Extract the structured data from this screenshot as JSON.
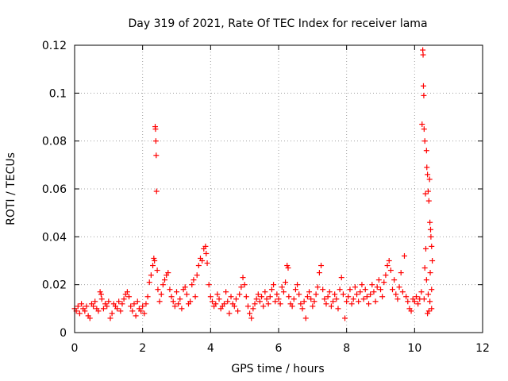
{
  "chart_data": {
    "type": "scatter",
    "title": "Day 319 of 2021, Rate Of TEC Index for receiver lama",
    "xlabel": "GPS time / hours",
    "ylabel": "ROTI / TECUs",
    "xlim": [
      0,
      12
    ],
    "ylim": [
      0,
      0.12
    ],
    "xticks": [
      0,
      2,
      4,
      6,
      8,
      10,
      12
    ],
    "yticks": [
      0,
      0.02,
      0.04,
      0.06,
      0.08,
      0.1,
      0.12
    ],
    "xtick_labels": [
      "0",
      "2",
      "4",
      "6",
      "8",
      "10",
      "12"
    ],
    "ytick_labels": [
      "0",
      "0.02",
      "0.04",
      "0.06",
      "0.08",
      "0.1",
      "0.12"
    ],
    "grid": true,
    "marker": "+",
    "color": "#ff0000",
    "series": [
      {
        "name": "ROTI",
        "points": [
          [
            0.0,
            0.01
          ],
          [
            0.05,
            0.009
          ],
          [
            0.1,
            0.011
          ],
          [
            0.15,
            0.008
          ],
          [
            0.2,
            0.012
          ],
          [
            0.25,
            0.01
          ],
          [
            0.3,
            0.009
          ],
          [
            0.35,
            0.011
          ],
          [
            0.4,
            0.007
          ],
          [
            0.45,
            0.006
          ],
          [
            0.5,
            0.012
          ],
          [
            0.55,
            0.011
          ],
          [
            0.6,
            0.013
          ],
          [
            0.65,
            0.01
          ],
          [
            0.7,
            0.009
          ],
          [
            0.75,
            0.017
          ],
          [
            0.78,
            0.016
          ],
          [
            0.8,
            0.014
          ],
          [
            0.85,
            0.01
          ],
          [
            0.9,
            0.012
          ],
          [
            0.95,
            0.011
          ],
          [
            1.0,
            0.013
          ],
          [
            1.05,
            0.006
          ],
          [
            1.1,
            0.008
          ],
          [
            1.15,
            0.012
          ],
          [
            1.2,
            0.011
          ],
          [
            1.25,
            0.01
          ],
          [
            1.3,
            0.013
          ],
          [
            1.35,
            0.009
          ],
          [
            1.4,
            0.012
          ],
          [
            1.45,
            0.014
          ],
          [
            1.5,
            0.016
          ],
          [
            1.55,
            0.017
          ],
          [
            1.6,
            0.015
          ],
          [
            1.65,
            0.011
          ],
          [
            1.7,
            0.009
          ],
          [
            1.75,
            0.012
          ],
          [
            1.8,
            0.007
          ],
          [
            1.85,
            0.013
          ],
          [
            1.9,
            0.01
          ],
          [
            1.95,
            0.009
          ],
          [
            2.0,
            0.011
          ],
          [
            2.05,
            0.008
          ],
          [
            2.1,
            0.012
          ],
          [
            2.15,
            0.015
          ],
          [
            2.2,
            0.021
          ],
          [
            2.25,
            0.024
          ],
          [
            2.3,
            0.028
          ],
          [
            2.33,
            0.031
          ],
          [
            2.35,
            0.03
          ],
          [
            2.37,
            0.086
          ],
          [
            2.38,
            0.085
          ],
          [
            2.39,
            0.08
          ],
          [
            2.4,
            0.074
          ],
          [
            2.41,
            0.059
          ],
          [
            2.43,
            0.026
          ],
          [
            2.45,
            0.018
          ],
          [
            2.5,
            0.013
          ],
          [
            2.55,
            0.016
          ],
          [
            2.6,
            0.02
          ],
          [
            2.65,
            0.022
          ],
          [
            2.7,
            0.024
          ],
          [
            2.75,
            0.025
          ],
          [
            2.8,
            0.018
          ],
          [
            2.85,
            0.015
          ],
          [
            2.9,
            0.013
          ],
          [
            2.95,
            0.011
          ],
          [
            3.0,
            0.017
          ],
          [
            3.05,
            0.012
          ],
          [
            3.1,
            0.014
          ],
          [
            3.15,
            0.01
          ],
          [
            3.2,
            0.018
          ],
          [
            3.25,
            0.019
          ],
          [
            3.3,
            0.016
          ],
          [
            3.35,
            0.012
          ],
          [
            3.4,
            0.013
          ],
          [
            3.45,
            0.02
          ],
          [
            3.5,
            0.022
          ],
          [
            3.55,
            0.015
          ],
          [
            3.6,
            0.024
          ],
          [
            3.65,
            0.028
          ],
          [
            3.7,
            0.031
          ],
          [
            3.75,
            0.03
          ],
          [
            3.8,
            0.035
          ],
          [
            3.85,
            0.036
          ],
          [
            3.87,
            0.033
          ],
          [
            3.9,
            0.029
          ],
          [
            3.95,
            0.02
          ],
          [
            4.0,
            0.015
          ],
          [
            4.05,
            0.013
          ],
          [
            4.1,
            0.011
          ],
          [
            4.15,
            0.012
          ],
          [
            4.2,
            0.016
          ],
          [
            4.25,
            0.014
          ],
          [
            4.3,
            0.01
          ],
          [
            4.35,
            0.011
          ],
          [
            4.4,
            0.012
          ],
          [
            4.45,
            0.017
          ],
          [
            4.5,
            0.013
          ],
          [
            4.55,
            0.008
          ],
          [
            4.6,
            0.015
          ],
          [
            4.65,
            0.012
          ],
          [
            4.7,
            0.011
          ],
          [
            4.75,
            0.014
          ],
          [
            4.8,
            0.009
          ],
          [
            4.85,
            0.016
          ],
          [
            4.9,
            0.019
          ],
          [
            4.95,
            0.023
          ],
          [
            5.0,
            0.02
          ],
          [
            5.05,
            0.015
          ],
          [
            5.1,
            0.011
          ],
          [
            5.15,
            0.008
          ],
          [
            5.2,
            0.006
          ],
          [
            5.25,
            0.01
          ],
          [
            5.3,
            0.012
          ],
          [
            5.35,
            0.014
          ],
          [
            5.4,
            0.016
          ],
          [
            5.45,
            0.013
          ],
          [
            5.5,
            0.015
          ],
          [
            5.55,
            0.011
          ],
          [
            5.6,
            0.017
          ],
          [
            5.65,
            0.014
          ],
          [
            5.7,
            0.012
          ],
          [
            5.75,
            0.015
          ],
          [
            5.8,
            0.018
          ],
          [
            5.85,
            0.02
          ],
          [
            5.9,
            0.013
          ],
          [
            5.95,
            0.016
          ],
          [
            6.0,
            0.014
          ],
          [
            6.05,
            0.012
          ],
          [
            6.1,
            0.019
          ],
          [
            6.15,
            0.017
          ],
          [
            6.2,
            0.021
          ],
          [
            6.25,
            0.028
          ],
          [
            6.28,
            0.027
          ],
          [
            6.3,
            0.015
          ],
          [
            6.35,
            0.012
          ],
          [
            6.4,
            0.011
          ],
          [
            6.45,
            0.014
          ],
          [
            6.5,
            0.018
          ],
          [
            6.55,
            0.02
          ],
          [
            6.6,
            0.016
          ],
          [
            6.65,
            0.012
          ],
          [
            6.7,
            0.01
          ],
          [
            6.75,
            0.013
          ],
          [
            6.8,
            0.006
          ],
          [
            6.85,
            0.015
          ],
          [
            6.9,
            0.017
          ],
          [
            6.95,
            0.014
          ],
          [
            7.0,
            0.011
          ],
          [
            7.05,
            0.013
          ],
          [
            7.1,
            0.016
          ],
          [
            7.15,
            0.019
          ],
          [
            7.2,
            0.025
          ],
          [
            7.25,
            0.028
          ],
          [
            7.3,
            0.018
          ],
          [
            7.35,
            0.014
          ],
          [
            7.4,
            0.012
          ],
          [
            7.45,
            0.015
          ],
          [
            7.5,
            0.017
          ],
          [
            7.55,
            0.011
          ],
          [
            7.6,
            0.013
          ],
          [
            7.65,
            0.016
          ],
          [
            7.7,
            0.014
          ],
          [
            7.75,
            0.01
          ],
          [
            7.8,
            0.018
          ],
          [
            7.85,
            0.023
          ],
          [
            7.9,
            0.016
          ],
          [
            7.95,
            0.006
          ],
          [
            8.0,
            0.013
          ],
          [
            8.05,
            0.015
          ],
          [
            8.1,
            0.018
          ],
          [
            8.15,
            0.012
          ],
          [
            8.2,
            0.014
          ],
          [
            8.25,
            0.019
          ],
          [
            8.3,
            0.016
          ],
          [
            8.35,
            0.013
          ],
          [
            8.4,
            0.017
          ],
          [
            8.45,
            0.02
          ],
          [
            8.5,
            0.014
          ],
          [
            8.55,
            0.018
          ],
          [
            8.6,
            0.015
          ],
          [
            8.65,
            0.012
          ],
          [
            8.7,
            0.016
          ],
          [
            8.75,
            0.02
          ],
          [
            8.8,
            0.017
          ],
          [
            8.85,
            0.013
          ],
          [
            8.9,
            0.019
          ],
          [
            8.95,
            0.022
          ],
          [
            9.0,
            0.018
          ],
          [
            9.05,
            0.015
          ],
          [
            9.1,
            0.021
          ],
          [
            9.15,
            0.024
          ],
          [
            9.2,
            0.028
          ],
          [
            9.25,
            0.03
          ],
          [
            9.3,
            0.026
          ],
          [
            9.35,
            0.018
          ],
          [
            9.4,
            0.022
          ],
          [
            9.45,
            0.016
          ],
          [
            9.5,
            0.014
          ],
          [
            9.55,
            0.019
          ],
          [
            9.6,
            0.025
          ],
          [
            9.65,
            0.017
          ],
          [
            9.7,
            0.032
          ],
          [
            9.75,
            0.015
          ],
          [
            9.8,
            0.013
          ],
          [
            9.85,
            0.01
          ],
          [
            9.9,
            0.009
          ],
          [
            9.95,
            0.014
          ],
          [
            10.0,
            0.013
          ],
          [
            10.05,
            0.015
          ],
          [
            10.1,
            0.012
          ],
          [
            10.15,
            0.014
          ],
          [
            10.2,
            0.017
          ],
          [
            10.22,
            0.087
          ],
          [
            10.24,
            0.118
          ],
          [
            10.25,
            0.116
          ],
          [
            10.26,
            0.103
          ],
          [
            10.27,
            0.099
          ],
          [
            10.28,
            0.085
          ],
          [
            10.3,
            0.08
          ],
          [
            10.32,
            0.058
          ],
          [
            10.33,
            0.035
          ],
          [
            10.35,
            0.076
          ],
          [
            10.36,
            0.069
          ],
          [
            10.38,
            0.066
          ],
          [
            10.4,
            0.059
          ],
          [
            10.42,
            0.055
          ],
          [
            10.44,
            0.064
          ],
          [
            10.45,
            0.046
          ],
          [
            10.47,
            0.043
          ],
          [
            10.48,
            0.04
          ],
          [
            10.5,
            0.036
          ],
          [
            10.52,
            0.03
          ],
          [
            10.3,
            0.027
          ],
          [
            10.35,
            0.022
          ],
          [
            10.4,
            0.016
          ],
          [
            10.45,
            0.013
          ],
          [
            10.5,
            0.01
          ],
          [
            10.38,
            0.008
          ],
          [
            10.42,
            0.009
          ],
          [
            10.28,
            0.014
          ],
          [
            10.46,
            0.025
          ],
          [
            10.5,
            0.018
          ]
        ]
      }
    ]
  }
}
